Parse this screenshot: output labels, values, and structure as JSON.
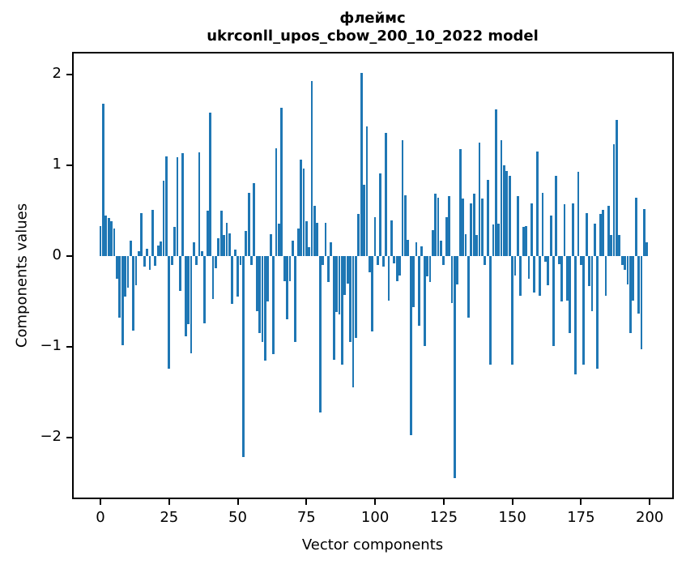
{
  "title": {
    "line1": "флеймс",
    "line2": "ukrconll_upos_cbow_200_10_2022 model"
  },
  "axes": {
    "xlabel": "Vector components",
    "ylabel": "Components values",
    "xticks": [
      0,
      25,
      50,
      75,
      100,
      125,
      150,
      175,
      200
    ],
    "yticks": [
      2,
      1,
      0,
      -1,
      -2
    ]
  },
  "colors": {
    "bar": "#1f77b4",
    "spine": "#000000",
    "background": "#ffffff"
  },
  "chart_data": {
    "type": "bar",
    "title": "флеймс",
    "subtitle": "ukrconll_upos_cbow_200_10_2022 model",
    "xlabel": "Vector components",
    "ylabel": "Components values",
    "x_range": [
      0,
      199
    ],
    "xlim": [
      -10.4,
      209.4
    ],
    "ylim": [
      -2.68,
      2.25
    ],
    "grid": false,
    "legend": null,
    "values": [
      0.33,
      1.68,
      0.45,
      0.42,
      0.38,
      0.3,
      -0.25,
      -0.68,
      -0.98,
      -0.45,
      -0.35,
      0.17,
      -0.82,
      -0.32,
      0.05,
      0.47,
      -0.12,
      0.08,
      -0.15,
      0.51,
      -0.11,
      0.12,
      0.16,
      0.83,
      1.1,
      -1.24,
      -0.1,
      0.32,
      1.09,
      -0.38,
      1.13,
      -0.88,
      -0.75,
      -1.07,
      0.15,
      -0.1,
      1.14,
      0.05,
      -0.74,
      0.5,
      1.58,
      -0.47,
      -0.13,
      0.2,
      0.5,
      0.23,
      0.37,
      0.25,
      -0.53,
      0.07,
      -0.45,
      -0.1,
      -2.21,
      0.28,
      0.7,
      -0.1,
      0.8,
      -0.61,
      -0.85,
      -0.95,
      -1.15,
      -0.5,
      0.24,
      -1.08,
      1.19,
      0.36,
      1.63,
      -0.28,
      -0.7,
      -0.28,
      0.17,
      -0.95,
      0.3,
      1.06,
      0.96,
      0.38,
      0.1,
      1.93,
      0.55,
      0.37,
      -1.72,
      -0.1,
      0.37,
      -0.29,
      0.15,
      -1.14,
      -0.62,
      -0.64,
      -1.2,
      -0.43,
      -0.3,
      -0.95,
      -1.45,
      -0.9,
      0.46,
      2.02,
      0.79,
      1.43,
      -0.18,
      -0.83,
      0.43,
      -0.1,
      0.91,
      -0.12,
      1.36,
      -0.49,
      0.39,
      -0.08,
      -0.28,
      -0.21,
      1.28,
      0.67,
      0.18,
      -1.97,
      -0.56,
      0.15,
      -0.77,
      0.11,
      -0.99,
      -0.22,
      -0.29,
      0.29,
      0.69,
      0.64,
      0.17,
      -0.1,
      0.43,
      0.66,
      -0.52,
      -2.45,
      -0.31,
      1.18,
      0.63,
      0.24,
      -0.68,
      0.58,
      0.69,
      0.23,
      1.25,
      0.63,
      -0.1,
      0.84,
      -1.2,
      0.35,
      1.62,
      0.36,
      1.28,
      1.0,
      0.94,
      0.88,
      -1.2,
      -0.21,
      0.66,
      -0.44,
      0.32,
      0.33,
      -0.25,
      0.58,
      -0.4,
      1.15,
      -0.44,
      0.7,
      -0.06,
      -0.32,
      0.45,
      -0.99,
      0.88,
      -0.09,
      -0.5,
      0.57,
      -0.49,
      -0.85,
      0.58,
      -1.3,
      0.93,
      -0.1,
      -1.2,
      0.47,
      -0.33,
      -0.61,
      0.36,
      -1.24,
      0.46,
      0.51,
      -0.44,
      0.55,
      0.23,
      1.23,
      1.5,
      0.23,
      -0.1,
      -0.15,
      -0.31,
      -0.85,
      -0.49,
      0.64,
      -0.63,
      -1.03,
      0.52,
      0.15
    ]
  }
}
